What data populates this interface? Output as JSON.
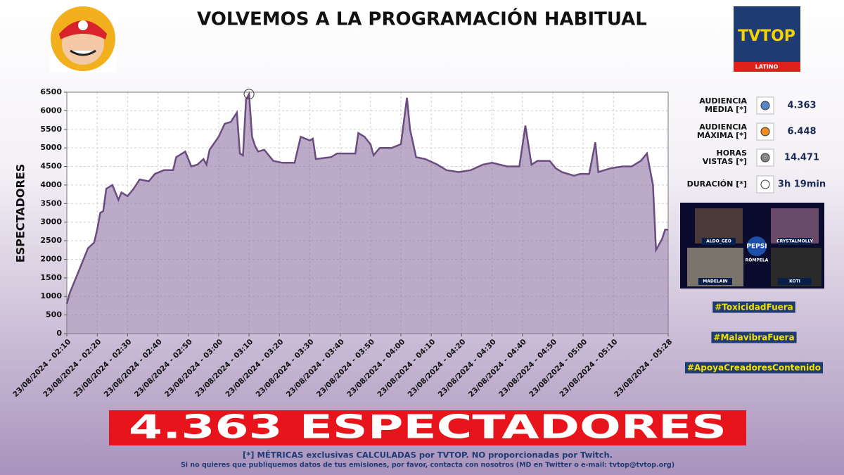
{
  "header": {
    "title": "VOLVEMOS A LA PROGRAMACIÓN HABITUAL",
    "logo": "TVTOP",
    "logo_sub": "LATINO"
  },
  "chart_data": {
    "type": "area",
    "ylabel": "ESPECTADORES",
    "color": "#6b4c80",
    "fill": "#8d73a3",
    "grid": true,
    "x": [
      "23/08/2024 - 02:10",
      "23/08/2024 - 02:11",
      "23/08/2024 - 02:13",
      "23/08/2024 - 02:15",
      "23/08/2024 - 02:17",
      "23/08/2024 - 02:19",
      "23/08/2024 - 02:20",
      "23/08/2024 - 02:21",
      "23/08/2024 - 02:22",
      "23/08/2024 - 02:23",
      "23/08/2024 - 02:25",
      "23/08/2024 - 02:27",
      "23/08/2024 - 02:28",
      "23/08/2024 - 02:30",
      "23/08/2024 - 02:32",
      "23/08/2024 - 02:34",
      "23/08/2024 - 02:37",
      "23/08/2024 - 02:39",
      "23/08/2024 - 02:42",
      "23/08/2024 - 02:45",
      "23/08/2024 - 02:46",
      "23/08/2024 - 02:48",
      "23/08/2024 - 02:49",
      "23/08/2024 - 02:51",
      "23/08/2024 - 02:53",
      "23/08/2024 - 02:55",
      "23/08/2024 - 02:56",
      "23/08/2024 - 02:57",
      "23/08/2024 - 03:00",
      "23/08/2024 - 03:02",
      "23/08/2024 - 03:04",
      "23/08/2024 - 03:06",
      "23/08/2024 - 03:07",
      "23/08/2024 - 03:08",
      "23/08/2024 - 03:09",
      "23/08/2024 - 03:10",
      "23/08/2024 - 03:11",
      "23/08/2024 - 03:12",
      "23/08/2024 - 03:13",
      "23/08/2024 - 03:15",
      "23/08/2024 - 03:18",
      "23/08/2024 - 03:21",
      "23/08/2024 - 03:25",
      "23/08/2024 - 03:27",
      "23/08/2024 - 03:30",
      "23/08/2024 - 03:31",
      "23/08/2024 - 03:32",
      "23/08/2024 - 03:37",
      "23/08/2024 - 03:39",
      "23/08/2024 - 03:45",
      "23/08/2024 - 03:46",
      "23/08/2024 - 03:48",
      "23/08/2024 - 03:50",
      "23/08/2024 - 03:51",
      "23/08/2024 - 03:53",
      "23/08/2024 - 03:57",
      "23/08/2024 - 04:00",
      "23/08/2024 - 04:02",
      "23/08/2024 - 04:03",
      "23/08/2024 - 04:05",
      "23/08/2024 - 04:08",
      "23/08/2024 - 04:12",
      "23/08/2024 - 04:15",
      "23/08/2024 - 04:19",
      "23/08/2024 - 04:23",
      "23/08/2024 - 04:27",
      "23/08/2024 - 04:30",
      "23/08/2024 - 04:35",
      "23/08/2024 - 04:39",
      "23/08/2024 - 04:41",
      "23/08/2024 - 04:43",
      "23/08/2024 - 04:45",
      "23/08/2024 - 04:49",
      "23/08/2024 - 04:51",
      "23/08/2024 - 04:53",
      "23/08/2024 - 04:57",
      "23/08/2024 - 04:59",
      "23/08/2024 - 05:02",
      "23/08/2024 - 05:04",
      "23/08/2024 - 05:05",
      "23/08/2024 - 05:09",
      "23/08/2024 - 05:13",
      "23/08/2024 - 05:16",
      "23/08/2024 - 05:19",
      "23/08/2024 - 05:21",
      "23/08/2024 - 05:23",
      "23/08/2024 - 05:24",
      "23/08/2024 - 05:26",
      "23/08/2024 - 05:27",
      "23/08/2024 - 05:28"
    ],
    "values": [
      800,
      1100,
      1500,
      1900,
      2300,
      2450,
      2800,
      3250,
      3300,
      3900,
      4000,
      3600,
      3800,
      3700,
      3900,
      4150,
      4100,
      4300,
      4400,
      4400,
      4750,
      4850,
      4900,
      4500,
      4550,
      4700,
      4550,
      4950,
      5300,
      5650,
      5700,
      5950,
      4850,
      4800,
      6300,
      6448,
      5300,
      5050,
      4900,
      4950,
      4650,
      4600,
      4600,
      5300,
      5200,
      5250,
      4700,
      4750,
      4850,
      4850,
      5400,
      5300,
      5100,
      4800,
      5000,
      5000,
      5100,
      6350,
      5500,
      4750,
      4700,
      4550,
      4400,
      4350,
      4400,
      4550,
      4600,
      4500,
      4500,
      5600,
      4550,
      4650,
      4650,
      4450,
      4350,
      4250,
      4300,
      4300,
      5150,
      4350,
      4450,
      4500,
      4500,
      4650,
      4850,
      4000,
      2250,
      2550,
      2800,
      2800
    ],
    "xlim": [
      "23/08/2024 - 02:10",
      "23/08/2024 - 05:28"
    ],
    "xticks": [
      "23/08/2024 - 02:10",
      "23/08/2024 - 02:20",
      "23/08/2024 - 02:30",
      "23/08/2024 - 02:40",
      "23/08/2024 - 02:50",
      "23/08/2024 - 03:00",
      "23/08/2024 - 03:10",
      "23/08/2024 - 03:20",
      "23/08/2024 - 03:30",
      "23/08/2024 - 03:40",
      "23/08/2024 - 03:50",
      "23/08/2024 - 04:00",
      "23/08/2024 - 04:10",
      "23/08/2024 - 04:20",
      "23/08/2024 - 04:30",
      "23/08/2024 - 04:40",
      "23/08/2024 - 04:50",
      "23/08/2024 - 05:00",
      "23/08/2024 - 05:10",
      "23/08/2024 - 05:28"
    ],
    "ylim": [
      0,
      6500
    ],
    "yticks": [
      0,
      500,
      1000,
      1500,
      2000,
      2500,
      3000,
      3500,
      4000,
      4500,
      5000,
      5500,
      6000,
      6500
    ]
  },
  "stats": [
    {
      "label": [
        "AUDIENCIA",
        "MEDIA [*]"
      ],
      "value": "4.363"
    },
    {
      "label": [
        "AUDIENCIA",
        "MÁXIMA [*]"
      ],
      "value": "6.448"
    },
    {
      "label": [
        "HORAS",
        "VISTAS [*]"
      ],
      "value": "14.471"
    },
    {
      "label": [
        "DURACIÓN [*]"
      ],
      "value": "3h 19min"
    }
  ],
  "thumbnail": {
    "names": [
      "ALDO_GEO",
      "CRYSTALMOLLY",
      "MADELAIN",
      "KOTI"
    ],
    "brand": "PEPSI",
    "brand_sub": "RÓMPELA"
  },
  "hashtags": [
    "#ToxicidadFuera",
    "#MalavibraFuera",
    "#ApoyaCreadoresContenido"
  ],
  "banner": "4.363 ESPECTADORES",
  "footer": [
    "[*] MÉTRICAS exclusivas CALCULADAS por TVTOP. NO proporcionadas por Twitch.",
    "Si no quieres que publiquemos datos de tus emisiones, por favor, contacta con nosotros (MD en Twitter o e-mail: tvtop@tvtop.org)"
  ]
}
